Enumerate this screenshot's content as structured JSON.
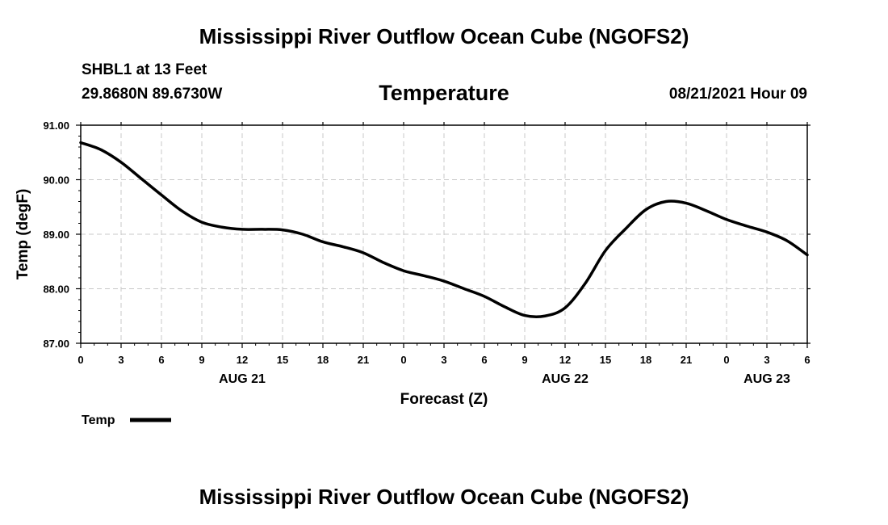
{
  "header": {
    "title": "Mississippi River Outflow Ocean Cube (NGOFS2)",
    "station": "SHBL1 at 13 Feet",
    "coords": "29.8680N  89.6730W",
    "datetime": "08/21/2021 Hour 09"
  },
  "footer": {
    "title": "Mississippi River Outflow Ocean Cube (NGOFS2)"
  },
  "chart_data": {
    "type": "line",
    "title": "Temperature",
    "xlabel": "Forecast (Z)",
    "ylabel": "Temp (degF)",
    "ylim": [
      87.0,
      91.0
    ],
    "xlim": [
      0,
      54
    ],
    "grid": true,
    "legend_position": "bottom-left",
    "y_ticks": [
      "87.00",
      "88.00",
      "89.00",
      "90.00",
      "91.00"
    ],
    "x_ticks": [
      "0",
      "3",
      "6",
      "9",
      "12",
      "15",
      "18",
      "21",
      "0",
      "3",
      "6",
      "9",
      "12",
      "15",
      "18",
      "21",
      "0",
      "3",
      "6"
    ],
    "date_labels": [
      {
        "label": "AUG 21",
        "hour": 12
      },
      {
        "label": "AUG 22",
        "hour": 36
      },
      {
        "label": "AUG 23",
        "hour": 51
      }
    ],
    "series": [
      {
        "name": "Temp",
        "color": "#000000",
        "x": [
          0,
          1.5,
          3,
          4.5,
          6,
          7.5,
          9,
          10.5,
          12,
          13.5,
          15,
          16.5,
          18,
          19.5,
          21,
          22.5,
          24,
          25.5,
          27,
          28.5,
          30,
          31.5,
          33,
          34.5,
          36,
          37.5,
          39,
          40.5,
          42,
          43.5,
          45,
          46.5,
          48,
          49.5,
          51,
          52.5,
          54
        ],
        "values": [
          90.68,
          90.55,
          90.32,
          90.02,
          89.72,
          89.43,
          89.22,
          89.13,
          89.09,
          89.09,
          89.08,
          89.0,
          88.86,
          88.77,
          88.66,
          88.48,
          88.33,
          88.24,
          88.14,
          88.0,
          87.86,
          87.67,
          87.51,
          87.5,
          87.65,
          88.1,
          88.7,
          89.1,
          89.45,
          89.6,
          89.57,
          89.43,
          89.27,
          89.15,
          89.04,
          88.88,
          88.62
        ]
      }
    ]
  }
}
